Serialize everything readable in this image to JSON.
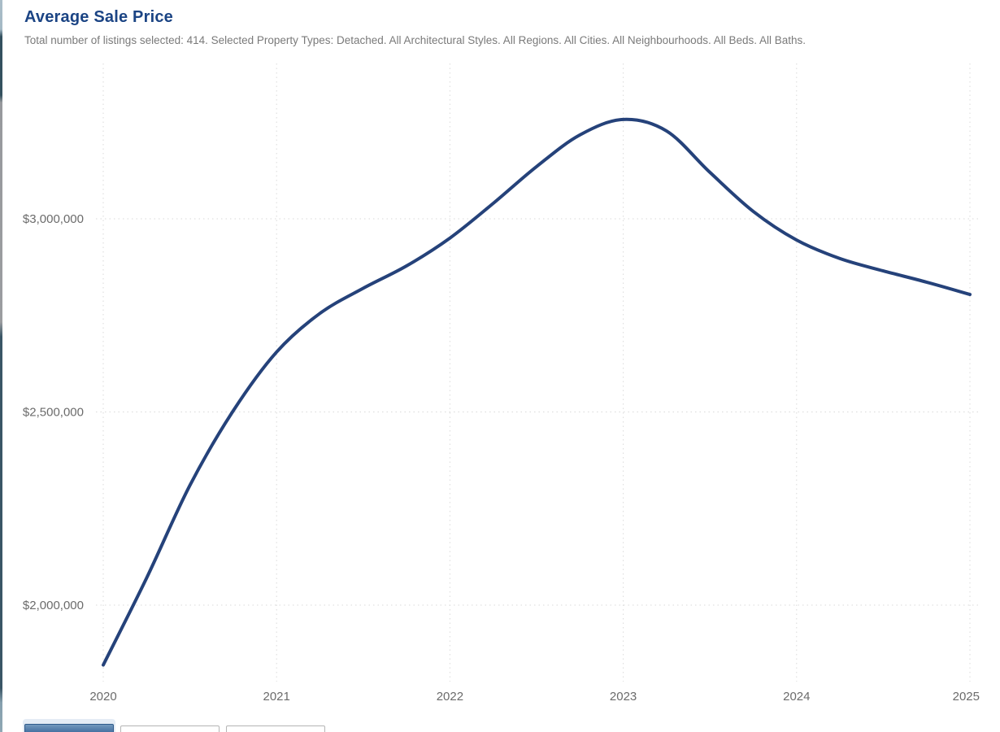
{
  "header": {
    "title": "Average Sale Price",
    "subtitle": "Total number of listings selected: 414. Selected Property Types: Detached. All Architectural Styles. All Regions. All Cities. All Neighbourhoods. All Beds. All Baths."
  },
  "colors": {
    "title": "#1b4484",
    "subtitle": "#7a7a7a",
    "line": "#25427a",
    "grid": "#dadada",
    "tick_label": "#6b6b6b",
    "selected_button": "#38659a"
  },
  "chart_data": {
    "type": "line",
    "title": "Average Sale Price",
    "series_name": "Average Sale Price ($)",
    "x": [
      2020.0,
      2020.25,
      2020.5,
      2020.75,
      2021.0,
      2021.25,
      2021.5,
      2021.75,
      2022.0,
      2022.25,
      2022.5,
      2022.75,
      2023.0,
      2023.25,
      2023.5,
      2023.75,
      2024.0,
      2024.25,
      2024.5,
      2024.75,
      2025.0
    ],
    "values": [
      1845000,
      2070000,
      2310000,
      2503000,
      2655000,
      2755000,
      2820000,
      2878000,
      2950000,
      3040000,
      3135000,
      3217000,
      3257000,
      3227000,
      3120000,
      3019000,
      2945000,
      2897000,
      2865000,
      2836000,
      2804000
    ],
    "xlabel": "",
    "ylabel": "",
    "xlim": [
      2020,
      2025
    ],
    "ylim": [
      1802000,
      3402000
    ],
    "xticks": [
      {
        "label": "2020",
        "value": 2020
      },
      {
        "label": "2021",
        "value": 2021
      },
      {
        "label": "2022",
        "value": 2022
      },
      {
        "label": "2023",
        "value": 2023
      },
      {
        "label": "2024",
        "value": 2024
      },
      {
        "label": "2025",
        "value": 2025
      }
    ],
    "yticks": [
      {
        "label": "$2,000,000",
        "value": 2000000
      },
      {
        "label": "$2,500,000",
        "value": 2500000
      },
      {
        "label": "$3,000,000",
        "value": 3000000
      }
    ],
    "grid": "dotted",
    "legend_position": "none",
    "line_color": "#25427a",
    "line_width": 4
  },
  "footer": {
    "buttons": [
      {
        "id": "range-option-1",
        "label": "",
        "selected": true
      },
      {
        "id": "range-option-2",
        "label": "",
        "selected": false
      },
      {
        "id": "range-option-3",
        "label": "",
        "selected": false
      }
    ]
  }
}
